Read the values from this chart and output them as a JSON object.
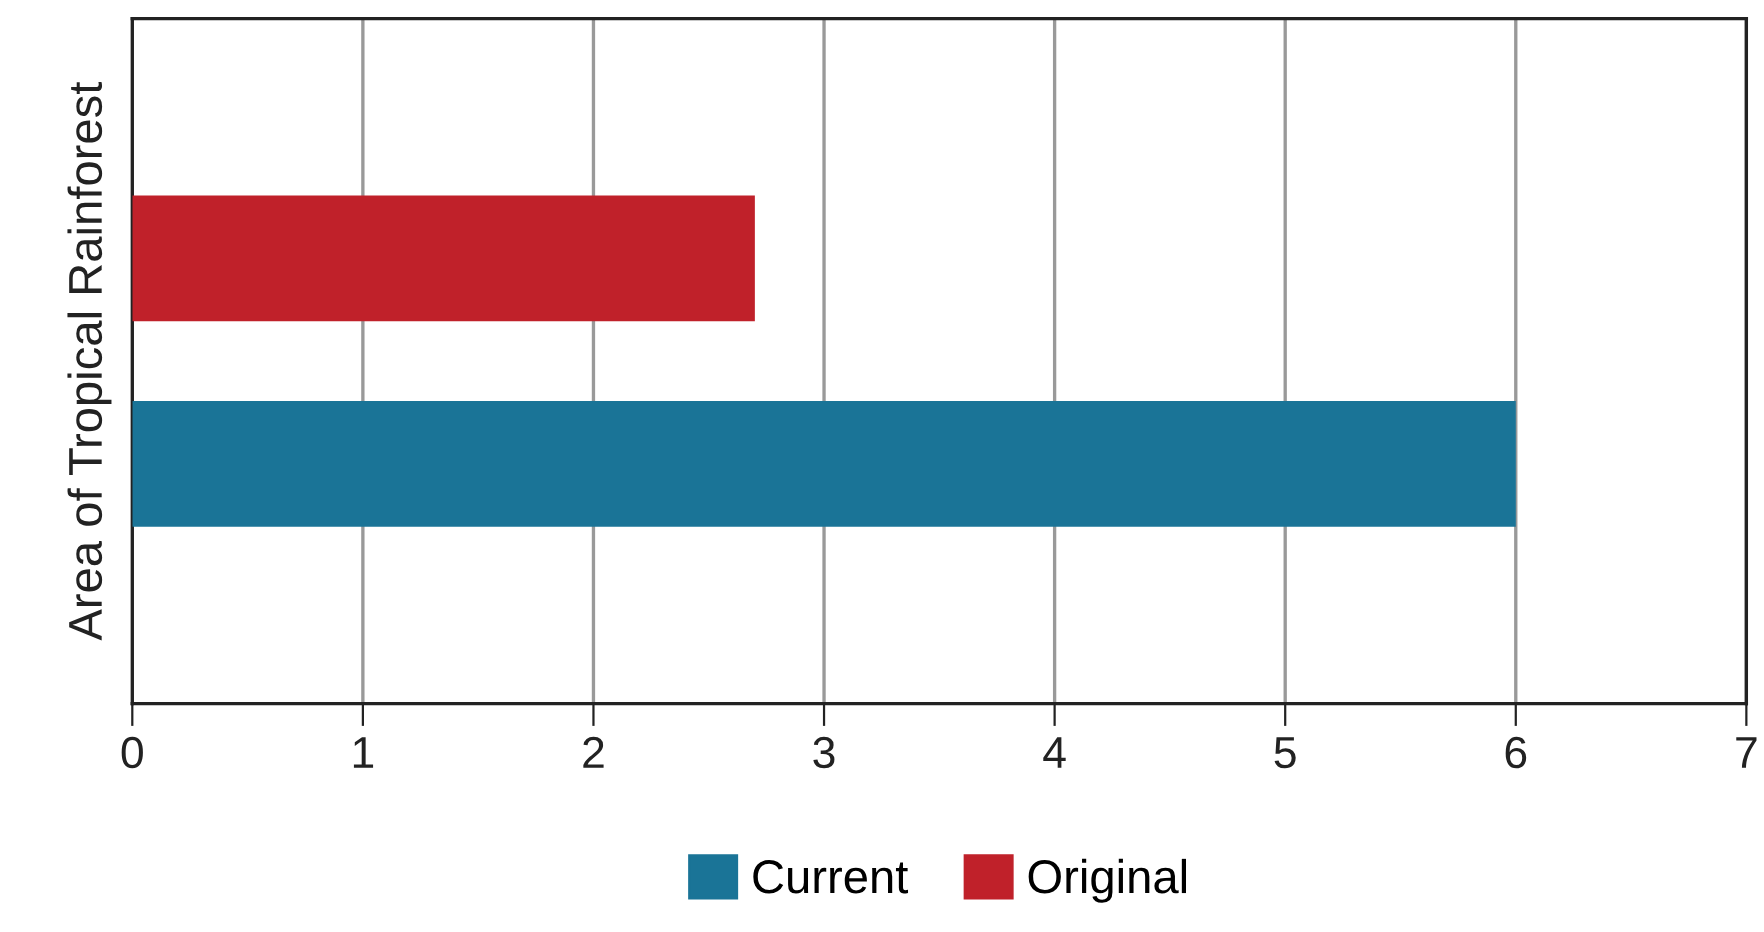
{
  "chart_data": {
    "type": "bar",
    "orientation": "horizontal",
    "ylabel": "Area of Tropical Rainforest",
    "categories": [
      null
    ],
    "series": [
      {
        "name": "Current",
        "color": "#1a7497",
        "values": [
          6
        ]
      },
      {
        "name": "Original",
        "color": "#c0212a",
        "values": [
          2.7
        ]
      }
    ],
    "xlim": [
      0,
      7
    ],
    "xticks": [
      0,
      1,
      2,
      3,
      4,
      5,
      6,
      7
    ],
    "grid": "x",
    "legend": "bottom"
  }
}
